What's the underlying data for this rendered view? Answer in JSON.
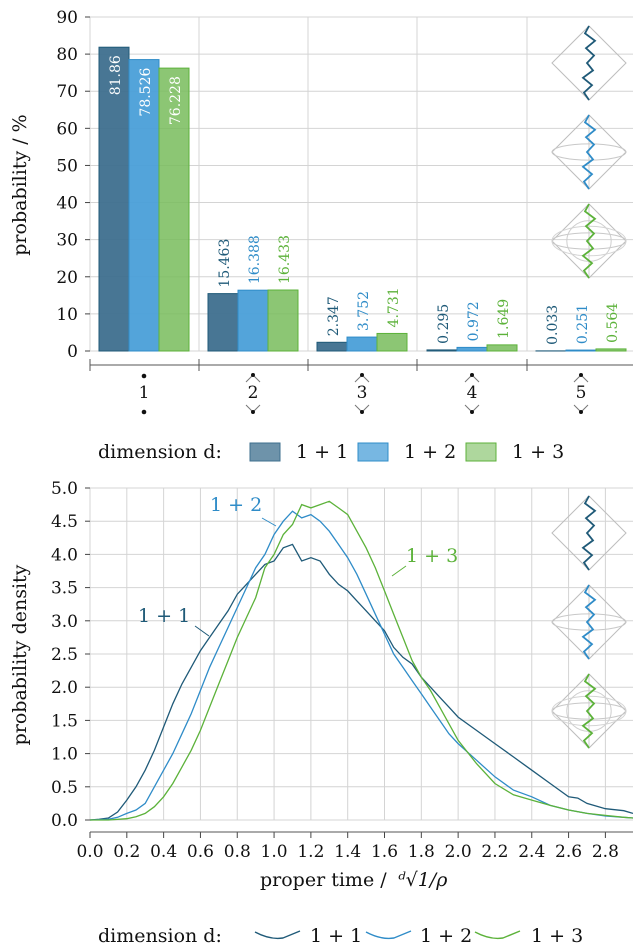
{
  "colors": {
    "d11": "#3e6f8e",
    "d12": "#4a9fd8",
    "d13": "#78bc5c",
    "line11": "#1f5a78",
    "line12": "#2f8cc8",
    "line13": "#5cb23a",
    "grid": "#d4d4d4"
  },
  "chart_data": [
    {
      "type": "bar",
      "ylabel": "probability / %",
      "ylim": [
        0,
        90
      ],
      "yticks": [
        "0",
        "10",
        "20",
        "30",
        "40",
        "50",
        "60",
        "70",
        "80",
        "90"
      ],
      "categories": [
        "1",
        "2",
        "3",
        "4",
        "5"
      ],
      "series": [
        {
          "name": "1 + 1",
          "values": [
            81.86,
            15.463,
            2.347,
            0.295,
            0.033
          ],
          "labels": [
            "81.86",
            "15.463",
            "2.347",
            "0.295",
            "0.033"
          ]
        },
        {
          "name": "1 + 2",
          "values": [
            78.526,
            16.388,
            3.752,
            0.972,
            0.251
          ],
          "labels": [
            "78.526",
            "16.388",
            "3.752",
            "0.972",
            "0.251"
          ]
        },
        {
          "name": "1 + 3",
          "values": [
            76.228,
            16.433,
            4.731,
            1.649,
            0.564
          ],
          "labels": [
            "76.228",
            "16.433",
            "4.731",
            "1.649",
            "0.564"
          ]
        }
      ],
      "legend_title": "dimension d:",
      "legend": [
        "1 + 1",
        "1 + 2",
        "1 + 3"
      ],
      "legend_position": "bottom",
      "grid": true
    },
    {
      "type": "line",
      "xlabel": "proper time / ",
      "xlabel_math": "ᵈ√1/ρ",
      "ylabel": "probability density",
      "xlim": [
        0,
        2.95
      ],
      "ylim": [
        0,
        5.0
      ],
      "xticks": [
        "0.0",
        "0.2",
        "0.4",
        "0.6",
        "0.8",
        "1.0",
        "1.2",
        "1.4",
        "1.6",
        "1.8",
        "2.0",
        "2.2",
        "2.4",
        "2.6",
        "2.8"
      ],
      "yticks": [
        "0.0",
        "0.5",
        "1.0",
        "1.5",
        "2.0",
        "2.5",
        "3.0",
        "3.5",
        "4.0",
        "4.5",
        "5.0"
      ],
      "series": [
        {
          "name": "1 + 1",
          "points": [
            [
              0,
              0
            ],
            [
              0.05,
              0.01
            ],
            [
              0.1,
              0.03
            ],
            [
              0.15,
              0.12
            ],
            [
              0.2,
              0.3
            ],
            [
              0.25,
              0.5
            ],
            [
              0.3,
              0.75
            ],
            [
              0.35,
              1.05
            ],
            [
              0.4,
              1.4
            ],
            [
              0.45,
              1.75
            ],
            [
              0.5,
              2.05
            ],
            [
              0.55,
              2.3
            ],
            [
              0.6,
              2.55
            ],
            [
              0.65,
              2.75
            ],
            [
              0.7,
              2.95
            ],
            [
              0.75,
              3.15
            ],
            [
              0.8,
              3.4
            ],
            [
              0.85,
              3.55
            ],
            [
              0.9,
              3.7
            ],
            [
              0.95,
              3.85
            ],
            [
              1.0,
              3.9
            ],
            [
              1.05,
              4.1
            ],
            [
              1.1,
              4.15
            ],
            [
              1.15,
              3.9
            ],
            [
              1.2,
              3.95
            ],
            [
              1.25,
              3.9
            ],
            [
              1.3,
              3.7
            ],
            [
              1.35,
              3.55
            ],
            [
              1.4,
              3.45
            ],
            [
              1.45,
              3.3
            ],
            [
              1.5,
              3.15
            ],
            [
              1.55,
              3.0
            ],
            [
              1.6,
              2.85
            ],
            [
              1.65,
              2.6
            ],
            [
              1.7,
              2.45
            ],
            [
              1.75,
              2.35
            ],
            [
              1.8,
              2.15
            ],
            [
              1.85,
              2.0
            ],
            [
              1.9,
              1.85
            ],
            [
              1.95,
              1.7
            ],
            [
              2.0,
              1.55
            ],
            [
              2.1,
              1.35
            ],
            [
              2.2,
              1.15
            ],
            [
              2.3,
              0.95
            ],
            [
              2.4,
              0.75
            ],
            [
              2.5,
              0.55
            ],
            [
              2.6,
              0.35
            ],
            [
              2.65,
              0.33
            ],
            [
              2.7,
              0.25
            ],
            [
              2.8,
              0.17
            ],
            [
              2.9,
              0.14
            ],
            [
              2.95,
              0.1
            ]
          ]
        },
        {
          "name": "1 + 2",
          "points": [
            [
              0,
              0
            ],
            [
              0.1,
              0.01
            ],
            [
              0.15,
              0.04
            ],
            [
              0.2,
              0.1
            ],
            [
              0.25,
              0.15
            ],
            [
              0.3,
              0.25
            ],
            [
              0.35,
              0.5
            ],
            [
              0.4,
              0.75
            ],
            [
              0.45,
              1.0
            ],
            [
              0.5,
              1.3
            ],
            [
              0.55,
              1.6
            ],
            [
              0.6,
              1.95
            ],
            [
              0.65,
              2.3
            ],
            [
              0.7,
              2.6
            ],
            [
              0.75,
              2.9
            ],
            [
              0.8,
              3.2
            ],
            [
              0.85,
              3.5
            ],
            [
              0.9,
              3.8
            ],
            [
              0.95,
              4.0
            ],
            [
              1.0,
              4.3
            ],
            [
              1.05,
              4.5
            ],
            [
              1.1,
              4.65
            ],
            [
              1.15,
              4.55
            ],
            [
              1.2,
              4.6
            ],
            [
              1.25,
              4.5
            ],
            [
              1.3,
              4.35
            ],
            [
              1.35,
              4.15
            ],
            [
              1.4,
              3.95
            ],
            [
              1.45,
              3.7
            ],
            [
              1.5,
              3.4
            ],
            [
              1.55,
              3.1
            ],
            [
              1.6,
              2.8
            ],
            [
              1.65,
              2.5
            ],
            [
              1.7,
              2.3
            ],
            [
              1.75,
              2.1
            ],
            [
              1.8,
              1.9
            ],
            [
              1.85,
              1.7
            ],
            [
              1.9,
              1.5
            ],
            [
              1.95,
              1.3
            ],
            [
              2.0,
              1.15
            ],
            [
              2.1,
              0.9
            ],
            [
              2.2,
              0.65
            ],
            [
              2.3,
              0.45
            ],
            [
              2.4,
              0.35
            ],
            [
              2.5,
              0.22
            ],
            [
              2.6,
              0.15
            ],
            [
              2.7,
              0.1
            ],
            [
              2.8,
              0.06
            ],
            [
              2.9,
              0.04
            ],
            [
              2.95,
              0.03
            ]
          ]
        },
        {
          "name": "1 + 3",
          "points": [
            [
              0,
              0
            ],
            [
              0.1,
              0.0
            ],
            [
              0.2,
              0.02
            ],
            [
              0.25,
              0.05
            ],
            [
              0.3,
              0.1
            ],
            [
              0.35,
              0.2
            ],
            [
              0.4,
              0.35
            ],
            [
              0.45,
              0.55
            ],
            [
              0.5,
              0.8
            ],
            [
              0.55,
              1.05
            ],
            [
              0.6,
              1.35
            ],
            [
              0.65,
              1.7
            ],
            [
              0.7,
              2.05
            ],
            [
              0.75,
              2.4
            ],
            [
              0.8,
              2.75
            ],
            [
              0.85,
              3.05
            ],
            [
              0.9,
              3.35
            ],
            [
              0.95,
              3.8
            ],
            [
              1.0,
              4.0
            ],
            [
              1.05,
              4.3
            ],
            [
              1.1,
              4.45
            ],
            [
              1.15,
              4.75
            ],
            [
              1.2,
              4.7
            ],
            [
              1.25,
              4.75
            ],
            [
              1.3,
              4.8
            ],
            [
              1.35,
              4.7
            ],
            [
              1.4,
              4.6
            ],
            [
              1.45,
              4.35
            ],
            [
              1.5,
              4.1
            ],
            [
              1.55,
              3.8
            ],
            [
              1.6,
              3.45
            ],
            [
              1.65,
              3.1
            ],
            [
              1.7,
              2.75
            ],
            [
              1.75,
              2.4
            ],
            [
              1.8,
              2.15
            ],
            [
              1.85,
              1.95
            ],
            [
              1.9,
              1.7
            ],
            [
              1.95,
              1.45
            ],
            [
              2.0,
              1.2
            ],
            [
              2.1,
              0.85
            ],
            [
              2.2,
              0.55
            ],
            [
              2.3,
              0.38
            ],
            [
              2.4,
              0.3
            ],
            [
              2.5,
              0.22
            ],
            [
              2.6,
              0.15
            ],
            [
              2.7,
              0.1
            ],
            [
              2.8,
              0.07
            ],
            [
              2.9,
              0.04
            ],
            [
              2.95,
              0.03
            ]
          ]
        }
      ],
      "annotations": [
        "1 + 1",
        "1 + 2",
        "1 + 3"
      ],
      "legend_title": "dimension d:",
      "legend": [
        "1 + 1",
        "1 + 2",
        "1 + 3"
      ],
      "legend_position": "bottom",
      "grid": true
    }
  ]
}
